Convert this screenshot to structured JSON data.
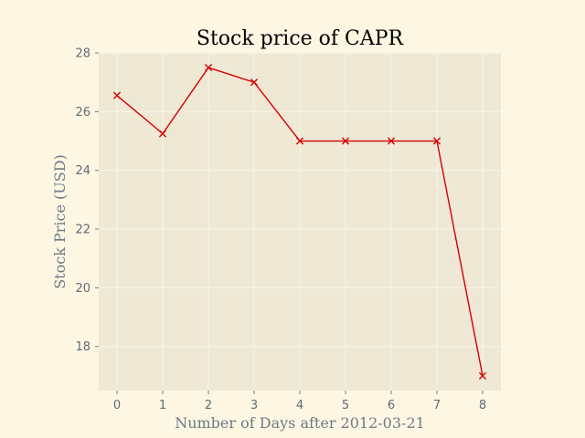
{
  "chart_data": {
    "type": "line",
    "title": "Stock price of CAPR",
    "xlabel": "Number of Days after 2012-03-21",
    "ylabel": "Stock Price (USD)",
    "x": [
      0,
      1,
      2,
      3,
      4,
      5,
      6,
      7,
      8
    ],
    "series": [
      {
        "values": [
          26.55,
          25.25,
          27.5,
          27.0,
          25.0,
          25.0,
          25.0,
          25.0,
          17.0
        ]
      }
    ],
    "xlim": [
      -0.4,
      8.4
    ],
    "ylim": [
      16.5,
      28.0
    ],
    "xticks": [
      0,
      1,
      2,
      3,
      4,
      5,
      6,
      7,
      8
    ],
    "yticks": [
      18,
      20,
      22,
      24,
      26,
      28
    ],
    "grid": true,
    "marker": "x",
    "colors": {
      "figure_background": "#fdf6e3",
      "plot_background": "#eee8d5",
      "grid": "#f9f4e6",
      "series": "#d50000"
    }
  }
}
